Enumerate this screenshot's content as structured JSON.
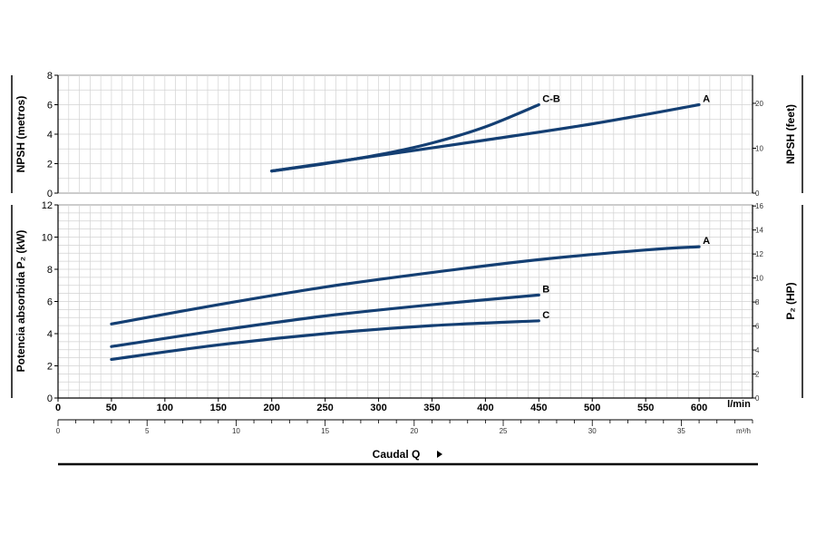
{
  "chart_data": [
    {
      "type": "line",
      "ylabel_left": "NPSH (metros)",
      "ylabel_right": "NPSH (feet)",
      "ylim": [
        0,
        8
      ],
      "y_ticks": [
        0,
        2,
        4,
        6,
        8
      ],
      "y2lim": [
        0,
        26.25
      ],
      "y2_ticks": [
        0,
        10,
        20
      ],
      "xlim": [
        0,
        650
      ],
      "grid": true,
      "series": [
        {
          "name": "C-B",
          "x": [
            200,
            250,
            300,
            350,
            400,
            450
          ],
          "y": [
            1.5,
            2.0,
            2.6,
            3.4,
            4.5,
            6.0
          ]
        },
        {
          "name": "A",
          "x": [
            200,
            300,
            400,
            500,
            600
          ],
          "y": [
            1.5,
            2.55,
            3.6,
            4.7,
            6.0
          ]
        }
      ]
    },
    {
      "type": "line",
      "ylabel_left": "Potencia absorbida P₂ (kW)",
      "ylabel_right": "P₂ (HP)",
      "ylim": [
        0,
        12
      ],
      "y_ticks": [
        0,
        2,
        4,
        6,
        8,
        10,
        12
      ],
      "y2lim": [
        0,
        16.09
      ],
      "y2_ticks": [
        0,
        2,
        4,
        6,
        8,
        10,
        12,
        14,
        16
      ],
      "xlabel": "Caudal Q",
      "xlim": [
        0,
        650
      ],
      "x_ticks": [
        0,
        50,
        100,
        150,
        200,
        250,
        300,
        350,
        400,
        450,
        500,
        550,
        600
      ],
      "x_unit": "l/min",
      "x2lim": [
        0,
        39
      ],
      "x2_ticks": [
        0,
        5,
        10,
        15,
        20,
        25,
        30,
        35
      ],
      "x2_unit": "m³/h",
      "grid": true,
      "series": [
        {
          "name": "A",
          "x": [
            50,
            150,
            250,
            350,
            450,
            550,
            600
          ],
          "y": [
            4.6,
            5.8,
            6.9,
            7.8,
            8.6,
            9.2,
            9.4
          ]
        },
        {
          "name": "B",
          "x": [
            50,
            150,
            250,
            350,
            450
          ],
          "y": [
            3.2,
            4.2,
            5.1,
            5.8,
            6.4
          ]
        },
        {
          "name": "C",
          "x": [
            50,
            150,
            250,
            350,
            450
          ],
          "y": [
            2.4,
            3.3,
            4.0,
            4.5,
            4.8
          ]
        }
      ]
    }
  ]
}
